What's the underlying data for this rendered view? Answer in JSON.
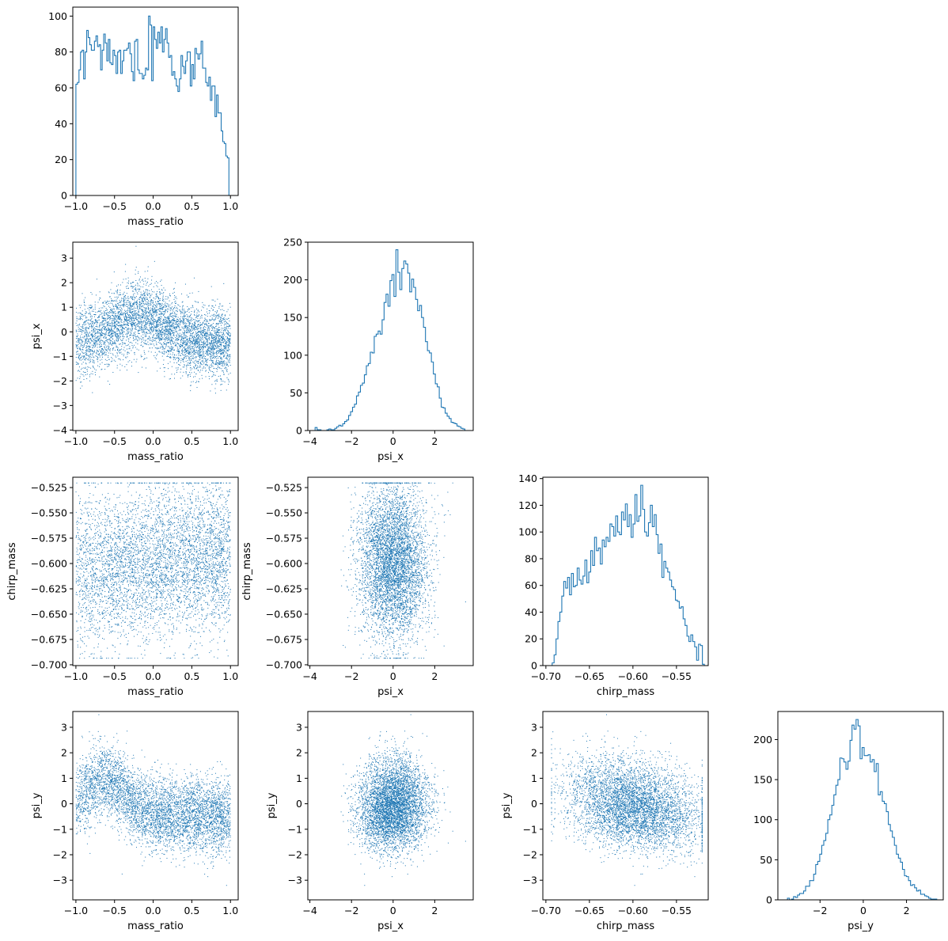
{
  "figure": {
    "type": "corner-plot",
    "variables": [
      "mass_ratio",
      "psi_x",
      "chirp_mass",
      "psi_y"
    ],
    "color": "#1f77b4"
  },
  "chart_data": [
    {
      "type": "histogram",
      "row": 0,
      "col": 0,
      "xlabel": "mass_ratio",
      "ylabel": "",
      "xlim": [
        -1.04,
        1.1
      ],
      "ylim": [
        0,
        105
      ],
      "xticks": [
        -1.0,
        -0.5,
        0.0,
        0.5,
        1.0
      ],
      "xtick_labels": [
        "−1.0",
        "−0.5",
        "0.0",
        "0.5",
        "1.0"
      ],
      "yticks": [
        0,
        20,
        40,
        60,
        80,
        100
      ],
      "ytick_labels": [
        "0",
        "20",
        "40",
        "60",
        "80",
        "100"
      ],
      "bin_range": [
        -1.0,
        1.0
      ],
      "counts": [
        62,
        63,
        70,
        80,
        81,
        65,
        80,
        92,
        88,
        84,
        81,
        81,
        86,
        89,
        83,
        84,
        70,
        81,
        90,
        85,
        75,
        87,
        74,
        73,
        81,
        78,
        68,
        80,
        81,
        68,
        75,
        81,
        81,
        82,
        85,
        79,
        69,
        64,
        86,
        87,
        70,
        68,
        68,
        65,
        67,
        71,
        70,
        100,
        95,
        64,
        94,
        87,
        82,
        91,
        85,
        94,
        80,
        87,
        93,
        85,
        77,
        78,
        67,
        69,
        65,
        61,
        58,
        65,
        78,
        72,
        68,
        75,
        80,
        80,
        61,
        73,
        65,
        82,
        79,
        76,
        79,
        86,
        71,
        71,
        63,
        61,
        66,
        53,
        61,
        61,
        44,
        56,
        46,
        46,
        36,
        30,
        29,
        22,
        21,
        0
      ]
    },
    {
      "type": "scatter",
      "row": 1,
      "col": 0,
      "xlabel": "mass_ratio",
      "ylabel": "psi_x",
      "xlim": [
        -1.04,
        1.1
      ],
      "ylim": [
        -4.02,
        3.65
      ],
      "xticks": [
        -1.0,
        -0.5,
        0.0,
        0.5,
        1.0
      ],
      "xtick_labels": [
        "−1.0",
        "−0.5",
        "0.0",
        "0.5",
        "1.0"
      ],
      "yticks": [
        -4,
        -3,
        -2,
        -1,
        0,
        1,
        2,
        3
      ],
      "ytick_labels": [
        "−4",
        "−3",
        "−2",
        "−1",
        "0",
        "1",
        "2",
        "3"
      ],
      "x_var": "mass_ratio",
      "y_var": "psi_x",
      "n_points": 5000
    },
    {
      "type": "histogram",
      "row": 1,
      "col": 1,
      "xlabel": "psi_x",
      "ylabel": "",
      "xlim": [
        -4.1,
        3.85
      ],
      "ylim": [
        0,
        250
      ],
      "xticks": [
        -4,
        -2,
        0,
        2
      ],
      "xtick_labels": [
        "−4",
        "−2",
        "0",
        "2"
      ],
      "yticks": [
        0,
        50,
        100,
        150,
        200,
        250
      ],
      "ytick_labels": [
        "0",
        "50",
        "100",
        "150",
        "200",
        "250"
      ],
      "bin_range": [
        -3.75,
        3.45
      ],
      "counts": [
        4,
        1,
        1,
        0,
        0,
        0,
        1,
        2,
        1,
        1,
        3,
        5,
        7,
        6,
        9,
        12,
        14,
        20,
        25,
        31,
        35,
        46,
        51,
        60,
        63,
        74,
        86,
        89,
        104,
        103,
        125,
        128,
        132,
        128,
        147,
        170,
        181,
        165,
        199,
        207,
        178,
        240,
        210,
        187,
        215,
        225,
        221,
        209,
        184,
        201,
        190,
        174,
        159,
        166,
        150,
        137,
        118,
        106,
        103,
        91,
        75,
        62,
        58,
        43,
        31,
        30,
        23,
        19,
        16,
        11,
        10,
        9,
        6,
        5,
        3,
        2
      ]
    },
    {
      "type": "scatter",
      "row": 2,
      "col": 0,
      "xlabel": "mass_ratio",
      "ylabel": "chirp_mass",
      "xlim": [
        -1.04,
        1.1
      ],
      "ylim": [
        -0.7008,
        -0.5148
      ],
      "xticks": [
        -1.0,
        -0.5,
        0.0,
        0.5,
        1.0
      ],
      "xtick_labels": [
        "−1.0",
        "−0.5",
        "0.0",
        "0.5",
        "1.0"
      ],
      "yticks": [
        -0.7,
        -0.675,
        -0.65,
        -0.625,
        -0.6,
        -0.575,
        -0.55,
        -0.525
      ],
      "ytick_labels": [
        "−0.700",
        "−0.675",
        "−0.650",
        "−0.625",
        "−0.600",
        "−0.575",
        "−0.550",
        "−0.525"
      ],
      "x_var": "mass_ratio",
      "y_var": "chirp_mass",
      "n_points": 5000
    },
    {
      "type": "scatter",
      "row": 2,
      "col": 1,
      "xlabel": "psi_x",
      "ylabel": "chirp_mass",
      "xlim": [
        -4.1,
        3.85
      ],
      "ylim": [
        -0.7008,
        -0.5148
      ],
      "xticks": [
        -4,
        -2,
        0,
        2
      ],
      "xtick_labels": [
        "−4",
        "−2",
        "0",
        "2"
      ],
      "yticks": [
        -0.7,
        -0.675,
        -0.65,
        -0.625,
        -0.6,
        -0.575,
        -0.55,
        -0.525
      ],
      "ytick_labels": [
        "−0.700",
        "−0.675",
        "−0.650",
        "−0.625",
        "−0.600",
        "−0.575",
        "−0.550",
        "−0.525"
      ],
      "x_var": "psi_x",
      "y_var": "chirp_mass",
      "n_points": 5000
    },
    {
      "type": "histogram",
      "row": 2,
      "col": 2,
      "xlabel": "chirp_mass",
      "ylabel": "",
      "xlim": [
        -0.7035,
        -0.5135
      ],
      "ylim": [
        0,
        141
      ],
      "xticks": [
        -0.7,
        -0.65,
        -0.6,
        -0.55
      ],
      "xtick_labels": [
        "−0.70",
        "−0.65",
        "−0.60",
        "−0.55"
      ],
      "yticks": [
        0,
        20,
        40,
        60,
        80,
        100,
        120,
        140
      ],
      "ytick_labels": [
        "0",
        "20",
        "40",
        "60",
        "80",
        "100",
        "120",
        "140"
      ],
      "bin_range": [
        -0.695,
        -0.518
      ],
      "counts": [
        0,
        2,
        8,
        20,
        33,
        40,
        52,
        63,
        58,
        66,
        53,
        69,
        59,
        60,
        73,
        64,
        61,
        67,
        79,
        62,
        70,
        86,
        75,
        96,
        86,
        88,
        76,
        94,
        89,
        96,
        93,
        106,
        104,
        97,
        112,
        100,
        98,
        115,
        109,
        121,
        104,
        113,
        96,
        106,
        128,
        108,
        112,
        135,
        117,
        100,
        97,
        107,
        120,
        104,
        113,
        98,
        84,
        91,
        66,
        78,
        73,
        70,
        64,
        59,
        57,
        49,
        48,
        43,
        44,
        35,
        30,
        22,
        18,
        23,
        18,
        14,
        4,
        16,
        15,
        1
      ]
    },
    {
      "type": "scatter",
      "row": 3,
      "col": 0,
      "xlabel": "mass_ratio",
      "ylabel": "psi_y",
      "xlim": [
        -1.04,
        1.1
      ],
      "ylim": [
        -3.77,
        3.62
      ],
      "xticks": [
        -1.0,
        -0.5,
        0.0,
        0.5,
        1.0
      ],
      "xtick_labels": [
        "−1.0",
        "−0.5",
        "0.0",
        "0.5",
        "1.0"
      ],
      "yticks": [
        -3,
        -2,
        -1,
        0,
        1,
        2,
        3
      ],
      "ytick_labels": [
        "−3",
        "−2",
        "−1",
        "0",
        "1",
        "2",
        "3"
      ],
      "x_var": "mass_ratio",
      "y_var": "psi_y",
      "n_points": 5000
    },
    {
      "type": "scatter",
      "row": 3,
      "col": 1,
      "xlabel": "psi_x",
      "ylabel": "psi_y",
      "xlim": [
        -4.1,
        3.85
      ],
      "ylim": [
        -3.77,
        3.62
      ],
      "xticks": [
        -4,
        -2,
        0,
        2
      ],
      "xtick_labels": [
        "−4",
        "−2",
        "0",
        "2"
      ],
      "yticks": [
        -3,
        -2,
        -1,
        0,
        1,
        2,
        3
      ],
      "ytick_labels": [
        "−3",
        "−2",
        "−1",
        "0",
        "1",
        "2",
        "3"
      ],
      "x_var": "psi_x",
      "y_var": "psi_y",
      "n_points": 5000
    },
    {
      "type": "scatter",
      "row": 3,
      "col": 2,
      "xlabel": "chirp_mass",
      "ylabel": "psi_y",
      "xlim": [
        -0.7035,
        -0.5135
      ],
      "ylim": [
        -3.77,
        3.62
      ],
      "xticks": [
        -0.7,
        -0.65,
        -0.6,
        -0.55
      ],
      "xtick_labels": [
        "−0.70",
        "−0.65",
        "−0.60",
        "−0.55"
      ],
      "yticks": [
        -3,
        -2,
        -1,
        0,
        1,
        2,
        3
      ],
      "ytick_labels": [
        "−3",
        "−2",
        "−1",
        "0",
        "1",
        "2",
        "3"
      ],
      "x_var": "chirp_mass",
      "y_var": "psi_y",
      "n_points": 5000
    },
    {
      "type": "histogram",
      "row": 3,
      "col": 3,
      "xlabel": "psi_y",
      "ylabel": "",
      "xlim": [
        -3.95,
        3.7
      ],
      "ylim": [
        0,
        235
      ],
      "xticks": [
        -2,
        0,
        2
      ],
      "xtick_labels": [
        "−2",
        "0",
        "2"
      ],
      "yticks": [
        0,
        50,
        100,
        150,
        200
      ],
      "ytick_labels": [
        "0",
        "50",
        "100",
        "150",
        "200"
      ],
      "bin_range": [
        -3.6,
        3.4
      ],
      "counts": [
        0,
        2,
        0,
        1,
        4,
        3,
        6,
        8,
        8,
        11,
        17,
        17,
        24,
        24,
        32,
        44,
        48,
        57,
        68,
        74,
        83,
        100,
        106,
        118,
        131,
        143,
        150,
        177,
        176,
        172,
        163,
        173,
        199,
        218,
        213,
        225,
        217,
        176,
        190,
        180,
        180,
        181,
        172,
        175,
        160,
        170,
        131,
        135,
        123,
        120,
        110,
        94,
        86,
        78,
        68,
        57,
        52,
        47,
        38,
        30,
        29,
        24,
        18,
        19,
        15,
        11,
        12,
        7,
        7,
        5,
        4,
        2,
        1,
        1,
        1
      ]
    }
  ]
}
